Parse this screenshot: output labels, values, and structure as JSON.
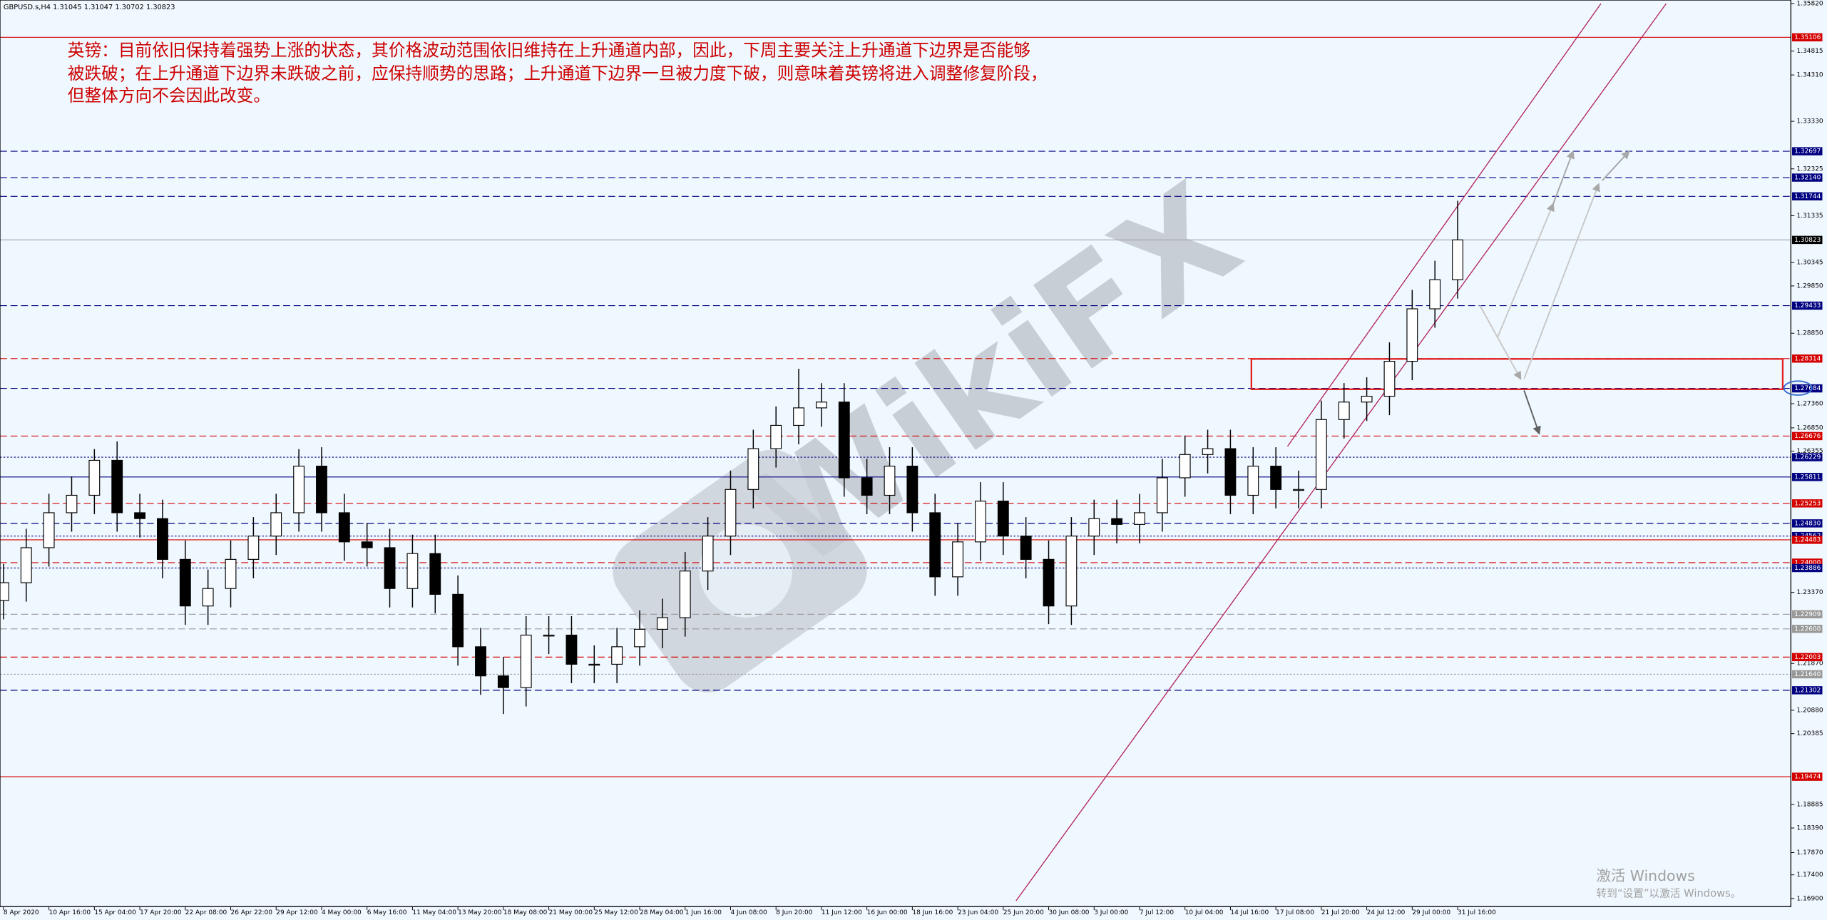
{
  "chart_data": {
    "type": "candlestick",
    "title": "GBPUSD.s,H4  1.31045 1.31047 1.30702 1.30823",
    "annotation": [
      "英镑：目前依旧保持着强势上涨的状态，其价格波动范围依旧维持在上升通道内部，因此，下周主要关注上升通道下边界是否能够",
      "被跌破；在上升通道下边界未跌破之前，应保持顺势的思路；上升通道下边界一旦被力度下破，则意味着英镑将进入调整修复阶段，",
      "但整体方向不会因此改变。"
    ],
    "watermark": "WikiFX",
    "up_color": "#ffffff",
    "down_color": "#000000",
    "wick_color": "#000000",
    "categories": [
      "8 Apr 2020",
      null,
      "10 Apr 16:00",
      null,
      "15 Apr 04:00",
      null,
      "17 Apr 20:00",
      null,
      "22 Apr 08:00",
      null,
      "26 Apr 22:00",
      null,
      "29 Apr 12:00",
      null,
      "4 May 00:00",
      null,
      "6 May 16:00",
      null,
      "11 May 04:00",
      null,
      "13 May 20:00",
      null,
      "18 May 08:00",
      null,
      "21 May 00:00",
      null,
      "25 May 12:00",
      null,
      "28 May 04:00",
      null,
      "1 Jun 16:00",
      null,
      "4 Jun 08:00",
      null,
      "8 Jun 20:00",
      null,
      "11 Jun 12:00",
      null,
      "16 Jun 00:00",
      null,
      "18 Jun 16:00",
      null,
      "23 Jun 04:00",
      null,
      "25 Jun 20:00",
      null,
      "30 Jun 08:00",
      null,
      "3 Jul 00:00",
      null,
      "7 Jul 12:00",
      null,
      "10 Jul 04:00",
      null,
      "14 Jul 16:00",
      null,
      "17 Jul 08:00",
      null,
      "21 Jul 20:00",
      null,
      "24 Jul 12:00",
      null,
      "29 Jul 00:00",
      null,
      "31 Jul 16:00"
    ],
    "open": [
      1.232,
      1.23576,
      1.24316,
      1.25055,
      1.25424,
      1.26163,
      1.25055,
      1.24931,
      1.24069,
      1.23084,
      1.23453,
      1.24069,
      1.24562,
      1.25055,
      1.2604,
      1.25055,
      1.24439,
      1.24316,
      1.23453,
      1.24192,
      1.2333,
      1.22222,
      1.21606,
      1.21359,
      1.22468,
      1.22468,
      1.21852,
      1.21852,
      1.22222,
      1.22591,
      1.22837,
      1.23823,
      1.24562,
      1.25547,
      1.2641,
      1.26902,
      1.27272,
      1.27395,
      1.25794,
      1.25424,
      1.2604,
      1.25055,
      1.237,
      1.24439,
      1.25301,
      1.24562,
      1.24069,
      1.23084,
      1.24562,
      1.24931,
      1.24808,
      1.25055,
      1.25794,
      1.26286,
      1.2641,
      1.25424,
      1.2604,
      1.25547,
      1.25547,
      1.27025,
      1.27395,
      1.27518,
      1.28257,
      1.29366,
      1.29982
    ],
    "high": [
      1.23976,
      1.24716,
      1.25455,
      1.25824,
      1.264,
      1.26563,
      1.25455,
      1.25331,
      1.24469,
      1.23853,
      1.24469,
      1.24962,
      1.25455,
      1.264,
      1.2644,
      1.25455,
      1.24839,
      1.24716,
      1.24592,
      1.24592,
      1.2373,
      1.22622,
      1.22006,
      1.22868,
      1.22868,
      1.22868,
      1.22252,
      1.22622,
      1.22991,
      1.23237,
      1.24223,
      1.24962,
      1.25947,
      1.2681,
      1.27302,
      1.281,
      1.27795,
      1.27795,
      1.26194,
      1.2644,
      1.2644,
      1.25455,
      1.24839,
      1.25701,
      1.25701,
      1.24962,
      1.24469,
      1.24962,
      1.25331,
      1.25331,
      1.25455,
      1.26194,
      1.26686,
      1.2681,
      1.2681,
      1.2644,
      1.2644,
      1.25947,
      1.27425,
      1.27795,
      1.27918,
      1.28657,
      1.29766,
      1.30382,
      1.3165
    ],
    "low": [
      1.228,
      1.23176,
      1.23916,
      1.24655,
      1.25024,
      1.24655,
      1.24531,
      1.23669,
      1.22684,
      1.22684,
      1.23053,
      1.23669,
      1.24162,
      1.24655,
      1.24655,
      1.24039,
      1.23916,
      1.23053,
      1.23053,
      1.2293,
      1.21822,
      1.21206,
      1.208,
      1.20959,
      1.22068,
      1.21452,
      1.21452,
      1.21452,
      1.21822,
      1.22191,
      1.22437,
      1.23423,
      1.24162,
      1.25147,
      1.2601,
      1.26502,
      1.26872,
      1.25394,
      1.25024,
      1.25024,
      1.24655,
      1.233,
      1.233,
      1.24039,
      1.24162,
      1.23669,
      1.227,
      1.22684,
      1.24162,
      1.24408,
      1.24408,
      1.24655,
      1.25394,
      1.25886,
      1.25024,
      1.25024,
      1.25147,
      1.25147,
      1.25147,
      1.26625,
      1.26995,
      1.27118,
      1.27857,
      1.28966,
      1.29582
    ],
    "close": [
      1.23576,
      1.24316,
      1.25055,
      1.25424,
      1.26163,
      1.25055,
      1.24931,
      1.24069,
      1.23084,
      1.23453,
      1.24069,
      1.24562,
      1.25055,
      1.2604,
      1.25055,
      1.24439,
      1.24316,
      1.23453,
      1.24192,
      1.2333,
      1.22222,
      1.21606,
      1.21359,
      1.22468,
      1.22468,
      1.21852,
      1.21852,
      1.22222,
      1.22591,
      1.22837,
      1.23823,
      1.24562,
      1.25547,
      1.2641,
      1.26902,
      1.27272,
      1.27395,
      1.25794,
      1.25424,
      1.2604,
      1.25055,
      1.237,
      1.24439,
      1.25301,
      1.24562,
      1.24069,
      1.23084,
      1.24562,
      1.24931,
      1.24808,
      1.25055,
      1.25794,
      1.26286,
      1.2641,
      1.25424,
      1.2604,
      1.25547,
      1.25547,
      1.27025,
      1.27395,
      1.27518,
      1.28257,
      1.29366,
      1.29982,
      1.30823
    ],
    "ylim": [
      1.16728,
      1.35894
    ],
    "yticks": [
      {
        "value": 1.3582,
        "label": "1.35820"
      },
      {
        "value": 1.34815,
        "label": "1.34815"
      },
      {
        "value": 1.3431,
        "label": "1.34310"
      },
      {
        "value": 1.3333,
        "label": "1.33330"
      },
      {
        "value": 1.32325,
        "label": "1.32325"
      },
      {
        "value": 1.31335,
        "label": "1.31335"
      },
      {
        "value": 1.30345,
        "label": "1.30345"
      },
      {
        "value": 1.2985,
        "label": "1.29850"
      },
      {
        "value": 1.2885,
        "label": "1.28850"
      },
      {
        "value": 1.2736,
        "label": "1.27360"
      },
      {
        "value": 1.2685,
        "label": "1.26850"
      },
      {
        "value": 1.26355,
        "label": "1.26355"
      },
      {
        "value": 1.2337,
        "label": "1.23370"
      },
      {
        "value": 1.2187,
        "label": "1.21870"
      },
      {
        "value": 1.2088,
        "label": "1.20880"
      },
      {
        "value": 1.20385,
        "label": "1.20385"
      },
      {
        "value": 1.18885,
        "label": "1.18885"
      },
      {
        "value": 1.1839,
        "label": "1.18390"
      },
      {
        "value": 1.1787,
        "label": "1.17870"
      },
      {
        "value": 1.174,
        "label": "1.17400"
      },
      {
        "value": 1.169,
        "label": "1.16900"
      }
    ],
    "levels": [
      {
        "value": 1.35106,
        "label": "1.35106",
        "color": "#d40000",
        "style": "solid"
      },
      {
        "value": 1.32697,
        "label": "1.32697",
        "color": "#000080",
        "style": "dashed"
      },
      {
        "value": 1.3214,
        "label": "1.32140",
        "color": "#000080",
        "style": "dashed"
      },
      {
        "value": 1.31744,
        "label": "1.31744",
        "color": "#000080",
        "style": "dashed"
      },
      {
        "value": 1.30823,
        "label": "1.30823",
        "color": "#000000",
        "style": "current"
      },
      {
        "value": 1.29433,
        "label": "1.29433",
        "color": "#000080",
        "style": "dashed"
      },
      {
        "value": 1.28314,
        "label": "1.28314",
        "color": "#d40000",
        "style": "dashed"
      },
      {
        "value": 1.27684,
        "label": "1.27684",
        "color": "#000080",
        "style": "dashed"
      },
      {
        "value": 1.26676,
        "label": "1.26676",
        "color": "#d40000",
        "style": "dashed"
      },
      {
        "value": 1.26229,
        "label": "1.26229",
        "color": "#000080",
        "style": "dotted"
      },
      {
        "value": 1.25811,
        "label": "1.25811",
        "color": "#000080",
        "style": "solid"
      },
      {
        "value": 1.25253,
        "label": "1.25253",
        "color": "#d40000",
        "style": "dashed"
      },
      {
        "value": 1.2483,
        "label": "1.24830",
        "color": "#000080",
        "style": "dashed"
      },
      {
        "value": 1.24562,
        "label": "1.24562",
        "color": "#000080",
        "style": "dotted"
      },
      {
        "value": 1.24483,
        "label": "1.24483",
        "color": "#d40000",
        "style": "solid"
      },
      {
        "value": 1.24,
        "label": "1.24000",
        "color": "#d40000",
        "style": "dashed"
      },
      {
        "value": 1.23886,
        "label": "1.23886",
        "color": "#000080",
        "style": "dotted"
      },
      {
        "value": 1.22909,
        "label": "1.22909",
        "color": "#999999",
        "style": "dashed"
      },
      {
        "value": 1.226,
        "label": "1.22600",
        "color": "#999999",
        "style": "dashed"
      },
      {
        "value": 1.22003,
        "label": "1.22003",
        "color": "#d40000",
        "style": "dashed"
      },
      {
        "value": 1.2164,
        "label": "1.21640",
        "color": "#999999",
        "style": "dotted"
      },
      {
        "value": 1.21302,
        "label": "1.21302",
        "color": "#000080",
        "style": "dashed"
      },
      {
        "value": 1.19474,
        "label": "1.19474",
        "color": "#d40000",
        "style": "solid"
      }
    ]
  },
  "overlay": {
    "line1": "激活 Windows",
    "line2": "转到“设置”以激活 Windows。"
  }
}
